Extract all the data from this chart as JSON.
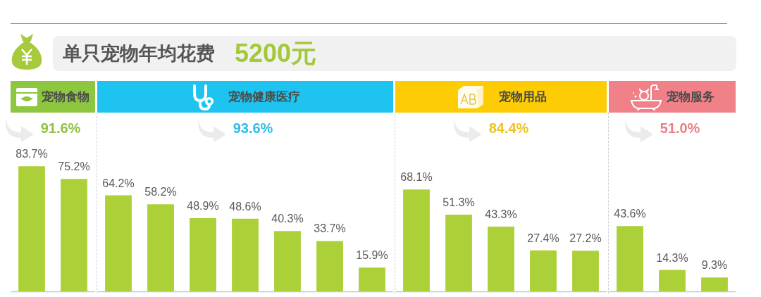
{
  "chart_data": [
    {
      "type": "other",
      "title": "单只宠物年均花费",
      "annotations": [
        "5200元"
      ]
    },
    {
      "type": "bar",
      "title": "宠物食物",
      "subtitle": "91.6%",
      "categories": [
        null,
        null
      ],
      "values": [
        83.7,
        75.2
      ],
      "color": "#acd037",
      "value_labels": [
        "83.7%",
        "75.2%"
      ]
    },
    {
      "type": "bar",
      "title": "宠物健康医疗",
      "subtitle": "93.6%",
      "categories": [
        null,
        null,
        null,
        null,
        null,
        null,
        null
      ],
      "values": [
        64.2,
        58.2,
        48.9,
        48.6,
        40.3,
        33.7,
        15.9
      ],
      "color": "#acd037",
      "value_labels": [
        "64.2%",
        "58.2%",
        "48.9%",
        "48.6%",
        "40.3%",
        "33.7%",
        "15.9%"
      ]
    },
    {
      "type": "bar",
      "title": "宠物用品",
      "subtitle": "84.4%",
      "categories": [
        null,
        null,
        null,
        null,
        null
      ],
      "values": [
        68.1,
        51.3,
        43.3,
        27.4,
        27.2
      ],
      "color": "#acd037",
      "value_labels": [
        "68.1%",
        "51.3%",
        "43.3%",
        "27.4%",
        "27.2%"
      ]
    },
    {
      "type": "bar",
      "title": "宠物服务",
      "subtitle": "51.0%",
      "categories": [
        null,
        null,
        null
      ],
      "values": [
        43.6,
        14.3,
        9.3
      ],
      "color": "#acd037",
      "value_labels": [
        "43.6%",
        "14.3%",
        "9.3%"
      ]
    }
  ]
}
